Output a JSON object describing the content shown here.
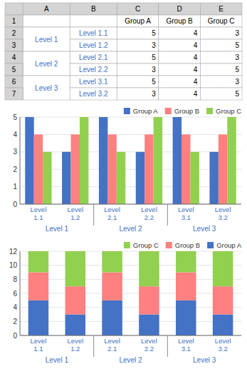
{
  "chart_data": [
    {
      "type": "table",
      "cells": [
        [
          null,
          "A",
          "B",
          "C",
          "D",
          "E"
        ],
        [
          "1",
          null,
          null,
          "Group A",
          "Group B",
          "Group C"
        ],
        [
          "2",
          "Level 1",
          "Level 1.1",
          5,
          4,
          3
        ],
        [
          "3",
          null,
          "Level 1.2",
          3,
          4,
          5
        ],
        [
          "4",
          "Level 2",
          "Level 2.1",
          5,
          4,
          3
        ],
        [
          "5",
          null,
          "Level 2.2",
          3,
          4,
          5
        ],
        [
          "6",
          "Level 3",
          "Level 3.1",
          5,
          4,
          3
        ],
        [
          "7",
          null,
          "Level 3.2",
          3,
          4,
          5
        ]
      ]
    },
    {
      "type": "bar",
      "categories": [
        "Level\n1.1",
        "Level\n1.2",
        "Level\n2.1",
        "Level\n2.2",
        "Level\n3.1",
        "Level\n3.2"
      ],
      "series": [
        {
          "name": "Group A",
          "color": "#4472C4",
          "values": [
            5,
            3,
            5,
            3,
            5,
            3
          ]
        },
        {
          "name": "Group B",
          "color": "#FF8080",
          "values": [
            4,
            4,
            4,
            4,
            4,
            4
          ]
        },
        {
          "name": "Group C",
          "color": "#92D050",
          "values": [
            3,
            5,
            3,
            5,
            3,
            5
          ]
        }
      ],
      "annotations": [
        "Level 1",
        "Level 2",
        "Level 3"
      ],
      "ylim": [
        0,
        5
      ],
      "yticks": [
        0,
        1,
        2,
        3,
        4,
        5
      ],
      "grid": true,
      "legend": "upper right"
    },
    {
      "type": "bar",
      "stacked": true,
      "categories": [
        "Level\n1.1",
        "Level\n1.2",
        "Level\n2.1",
        "Level\n2.2",
        "Level\n3.1",
        "Level\n3.2"
      ],
      "series": [
        {
          "name": "Group A",
          "color": "#4472C4",
          "values": [
            5,
            3,
            5,
            3,
            5,
            3
          ]
        },
        {
          "name": "Group B",
          "color": "#FF8080",
          "values": [
            4,
            4,
            4,
            4,
            4,
            4
          ]
        },
        {
          "name": "Group C",
          "color": "#92D050",
          "values": [
            3,
            5,
            3,
            5,
            3,
            5
          ]
        }
      ],
      "annotations": [
        "Level 1",
        "Level 2",
        "Level 3"
      ],
      "ylim": [
        0,
        12
      ],
      "yticks": [
        0,
        2,
        4,
        6,
        8,
        10,
        12
      ],
      "grid": true,
      "legend": "upper right"
    }
  ]
}
